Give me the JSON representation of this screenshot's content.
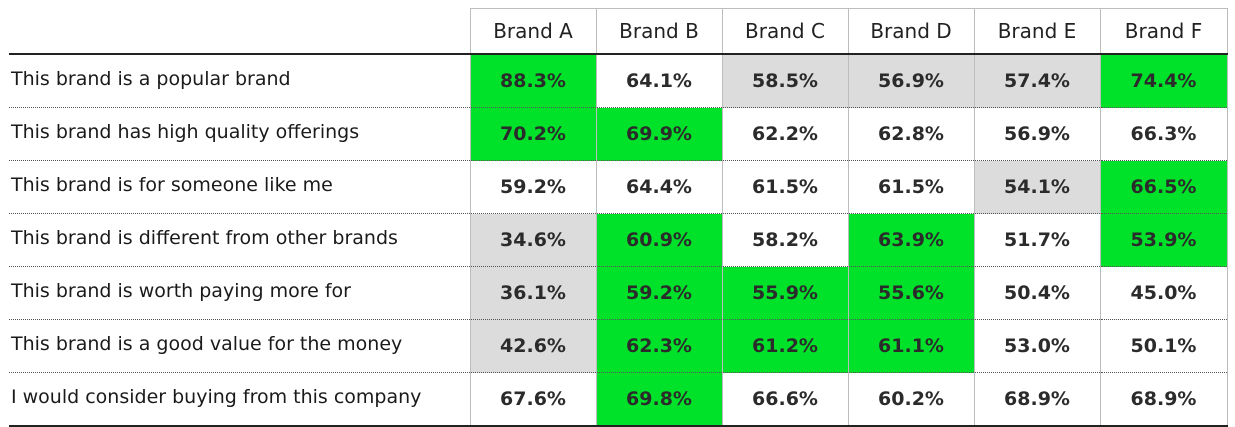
{
  "colors": {
    "high": "#00e12a",
    "low": "#dcdcdc",
    "neutral": "#ffffff"
  },
  "chart_data": {
    "type": "table",
    "columns": [
      "Brand A",
      "Brand B",
      "Brand C",
      "Brand D",
      "Brand E",
      "Brand F"
    ],
    "rows": [
      {
        "label": "This brand is a popular brand",
        "values": [
          "88.3%",
          "64.1%",
          "58.5%",
          "56.9%",
          "57.4%",
          "74.4%"
        ],
        "highlight": [
          "high",
          "none",
          "low",
          "low",
          "low",
          "high"
        ]
      },
      {
        "label": "This brand has high quality offerings",
        "values": [
          "70.2%",
          "69.9%",
          "62.2%",
          "62.8%",
          "56.9%",
          "66.3%"
        ],
        "highlight": [
          "high",
          "high",
          "none",
          "none",
          "none",
          "none"
        ]
      },
      {
        "label": "This brand is for someone like me",
        "values": [
          "59.2%",
          "64.4%",
          "61.5%",
          "61.5%",
          "54.1%",
          "66.5%"
        ],
        "highlight": [
          "none",
          "none",
          "none",
          "none",
          "low",
          "high"
        ]
      },
      {
        "label": "This brand is different from other brands",
        "values": [
          "34.6%",
          "60.9%",
          "58.2%",
          "63.9%",
          "51.7%",
          "53.9%"
        ],
        "highlight": [
          "low",
          "high",
          "none",
          "high",
          "none",
          "high"
        ]
      },
      {
        "label": "This brand is worth paying more for",
        "values": [
          "36.1%",
          "59.2%",
          "55.9%",
          "55.6%",
          "50.4%",
          "45.0%"
        ],
        "highlight": [
          "low",
          "high",
          "high",
          "high",
          "none",
          "none"
        ]
      },
      {
        "label": "This brand is a good value for the money",
        "values": [
          "42.6%",
          "62.3%",
          "61.2%",
          "61.1%",
          "53.0%",
          "50.1%"
        ],
        "highlight": [
          "low",
          "high",
          "high",
          "high",
          "none",
          "none"
        ]
      },
      {
        "label": "I would consider buying from this company",
        "values": [
          "67.6%",
          "69.8%",
          "66.6%",
          "60.2%",
          "68.9%",
          "68.9%"
        ],
        "highlight": [
          "none",
          "high",
          "none",
          "none",
          "none",
          "none"
        ]
      }
    ]
  }
}
